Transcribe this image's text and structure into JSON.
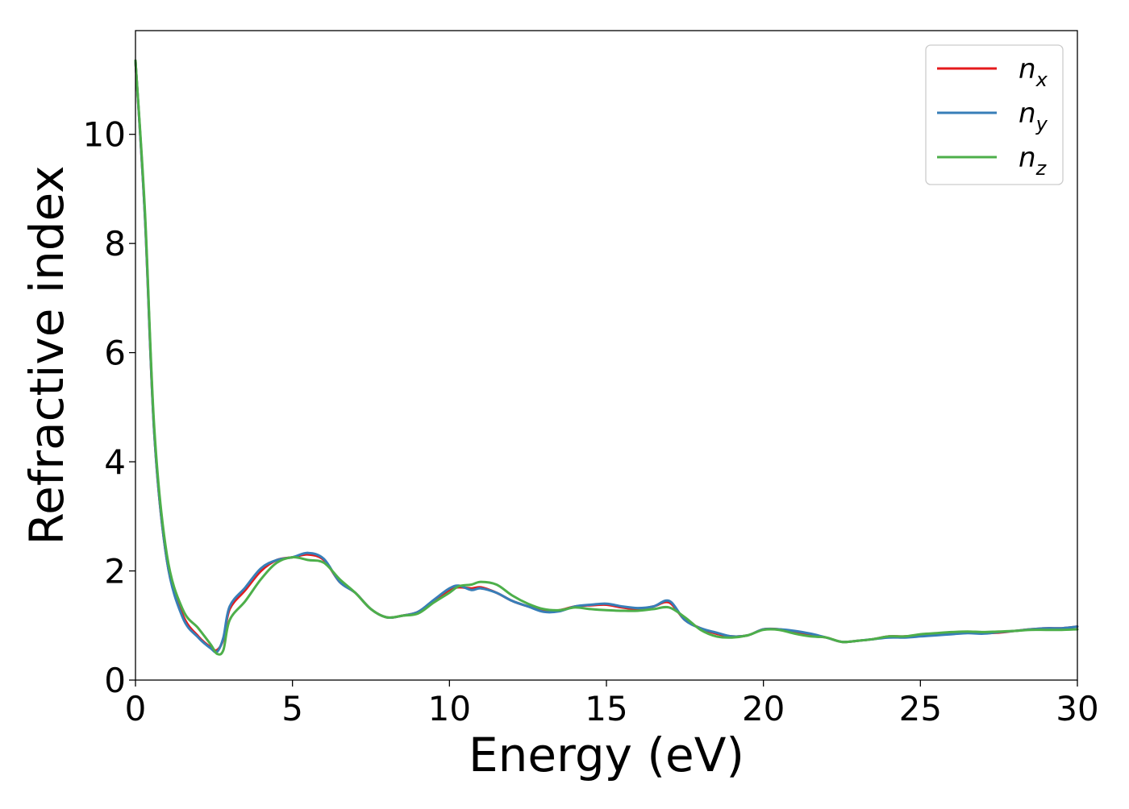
{
  "chart_data": {
    "type": "line",
    "title": "",
    "xlabel": "Energy (eV)",
    "ylabel": "Refractive index",
    "xlim": [
      0,
      30
    ],
    "ylim": [
      0,
      11.9
    ],
    "xticks": [
      0,
      5,
      10,
      15,
      20,
      25,
      30
    ],
    "xtick_labels": [
      "0",
      "5",
      "10",
      "15",
      "20",
      "25",
      "30"
    ],
    "yticks": [
      0,
      2,
      4,
      6,
      8,
      10
    ],
    "ytick_labels": [
      "0",
      "2",
      "4",
      "6",
      "8",
      "10"
    ],
    "grid": false,
    "legend_position": "top-right",
    "series": [
      {
        "name": "n_x",
        "legend_main": "n",
        "legend_sub": "x",
        "color": "#e41a1c",
        "x": [
          0,
          0.3,
          0.6,
          1.0,
          1.5,
          2.0,
          2.4,
          2.6,
          2.8,
          3.0,
          3.5,
          4.0,
          4.5,
          5.0,
          5.5,
          6.0,
          6.5,
          7.0,
          7.5,
          8.0,
          8.5,
          9.0,
          9.5,
          10.0,
          10.3,
          10.7,
          11.0,
          11.5,
          12.0,
          12.5,
          13.0,
          13.5,
          14.0,
          14.5,
          15.0,
          15.5,
          16.0,
          16.5,
          17.0,
          17.5,
          18.0,
          18.5,
          19.0,
          19.5,
          20.0,
          20.5,
          21.0,
          21.5,
          22.0,
          22.5,
          23.0,
          23.5,
          24.0,
          24.5,
          25.0,
          25.5,
          26.0,
          26.5,
          27.0,
          27.5,
          28.0,
          28.5,
          29.0,
          29.5,
          30.0
        ],
        "y": [
          11.35,
          8.5,
          4.5,
          2.2,
          1.2,
          0.8,
          0.6,
          0.55,
          0.75,
          1.3,
          1.65,
          2.0,
          2.2,
          2.25,
          2.3,
          2.2,
          1.8,
          1.6,
          1.3,
          1.15,
          1.18,
          1.25,
          1.45,
          1.65,
          1.7,
          1.68,
          1.7,
          1.6,
          1.45,
          1.35,
          1.27,
          1.28,
          1.35,
          1.37,
          1.38,
          1.33,
          1.3,
          1.35,
          1.42,
          1.1,
          0.95,
          0.85,
          0.8,
          0.82,
          0.93,
          0.93,
          0.88,
          0.83,
          0.78,
          0.7,
          0.72,
          0.75,
          0.8,
          0.8,
          0.82,
          0.84,
          0.86,
          0.87,
          0.86,
          0.87,
          0.9,
          0.93,
          0.95,
          0.95,
          0.98
        ]
      },
      {
        "name": "n_y",
        "legend_main": "n",
        "legend_sub": "y",
        "color": "#377eb8",
        "x": [
          0,
          0.3,
          0.6,
          1.0,
          1.5,
          2.0,
          2.4,
          2.6,
          2.8,
          3.0,
          3.5,
          4.0,
          4.5,
          5.0,
          5.5,
          6.0,
          6.5,
          7.0,
          7.5,
          8.0,
          8.5,
          9.0,
          9.5,
          10.0,
          10.3,
          10.7,
          11.0,
          11.5,
          12.0,
          12.5,
          13.0,
          13.5,
          14.0,
          14.5,
          15.0,
          15.5,
          16.0,
          16.5,
          17.0,
          17.5,
          18.0,
          18.5,
          19.0,
          19.5,
          20.0,
          20.5,
          21.0,
          21.5,
          22.0,
          22.5,
          23.0,
          23.5,
          24.0,
          24.5,
          25.0,
          25.5,
          26.0,
          26.5,
          27.0,
          27.5,
          28.0,
          28.5,
          29.0,
          29.5,
          30.0
        ],
        "y": [
          11.35,
          8.5,
          4.5,
          2.2,
          1.15,
          0.78,
          0.58,
          0.52,
          0.78,
          1.35,
          1.7,
          2.05,
          2.2,
          2.25,
          2.33,
          2.22,
          1.8,
          1.6,
          1.3,
          1.15,
          1.18,
          1.25,
          1.47,
          1.68,
          1.73,
          1.65,
          1.68,
          1.6,
          1.45,
          1.35,
          1.25,
          1.26,
          1.35,
          1.38,
          1.4,
          1.35,
          1.32,
          1.35,
          1.45,
          1.1,
          0.95,
          0.87,
          0.8,
          0.82,
          0.93,
          0.93,
          0.9,
          0.85,
          0.78,
          0.7,
          0.72,
          0.75,
          0.78,
          0.78,
          0.8,
          0.82,
          0.84,
          0.86,
          0.85,
          0.88,
          0.9,
          0.93,
          0.95,
          0.95,
          0.98
        ]
      },
      {
        "name": "n_z",
        "legend_main": "n",
        "legend_sub": "z",
        "color": "#4daf4a",
        "x": [
          0,
          0.3,
          0.6,
          1.0,
          1.5,
          2.0,
          2.4,
          2.6,
          2.8,
          3.0,
          3.5,
          4.0,
          4.5,
          5.0,
          5.5,
          6.0,
          6.5,
          7.0,
          7.5,
          8.0,
          8.5,
          9.0,
          9.5,
          10.0,
          10.3,
          10.7,
          11.0,
          11.5,
          12.0,
          12.5,
          13.0,
          13.5,
          14.0,
          14.5,
          15.0,
          15.5,
          16.0,
          16.5,
          17.0,
          17.5,
          18.0,
          18.5,
          19.0,
          19.5,
          20.0,
          20.5,
          21.0,
          21.5,
          22.0,
          22.5,
          23.0,
          23.5,
          24.0,
          24.5,
          25.0,
          25.5,
          26.0,
          26.5,
          27.0,
          27.5,
          28.0,
          28.5,
          29.0,
          29.5,
          30.0
        ],
        "y": [
          11.35,
          8.6,
          4.6,
          2.3,
          1.3,
          0.95,
          0.65,
          0.48,
          0.55,
          1.1,
          1.45,
          1.85,
          2.15,
          2.25,
          2.2,
          2.15,
          1.85,
          1.6,
          1.3,
          1.15,
          1.18,
          1.22,
          1.42,
          1.6,
          1.72,
          1.75,
          1.8,
          1.75,
          1.55,
          1.4,
          1.3,
          1.28,
          1.33,
          1.3,
          1.28,
          1.27,
          1.27,
          1.3,
          1.33,
          1.15,
          0.92,
          0.8,
          0.78,
          0.82,
          0.92,
          0.92,
          0.85,
          0.8,
          0.78,
          0.7,
          0.72,
          0.75,
          0.8,
          0.8,
          0.84,
          0.86,
          0.88,
          0.89,
          0.88,
          0.89,
          0.9,
          0.92,
          0.92,
          0.92,
          0.93
        ]
      }
    ]
  }
}
